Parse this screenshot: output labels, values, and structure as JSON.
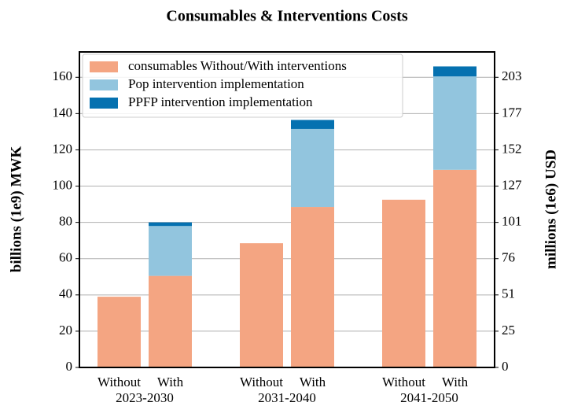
{
  "chart_data": {
    "type": "stacked-bar",
    "title": "Consumables & Interventions Costs",
    "categories": [
      "Without",
      "With",
      "Without",
      "With",
      "Without",
      "With"
    ],
    "groups": [
      "2023-2030",
      "2031-2040",
      "2041-2050"
    ],
    "series": [
      {
        "name": "consumables Without/With interventions",
        "color": "#f4a582",
        "values": [
          39,
          50.5,
          68.5,
          88.5,
          92.5,
          109
        ]
      },
      {
        "name": "Pop intervention implementation",
        "color": "#92c5de",
        "values": [
          null,
          27.5,
          null,
          43,
          null,
          51.5
        ]
      },
      {
        "name": "PPFP intervention implementation",
        "color": "#0571b0",
        "values": [
          null,
          2,
          null,
          5,
          null,
          5.5
        ]
      }
    ],
    "ylabel": "billions (1e9) MWK",
    "ylim": [
      0,
      174
    ],
    "yticks": [
      0,
      20,
      40,
      60,
      80,
      100,
      120,
      140,
      160
    ],
    "y2label": "millions (1e6) USD",
    "y2lim": [
      0,
      220.28
    ],
    "y2ticks": [
      0,
      {
        "value": 25.32,
        "label": "25"
      },
      {
        "value": 50.64,
        "label": "51"
      },
      {
        "value": 75.96,
        "label": "76"
      },
      {
        "value": 101.28,
        "label": "101"
      },
      {
        "value": 126.6,
        "label": "127"
      },
      {
        "value": 151.92,
        "label": "152"
      },
      {
        "value": 177.24,
        "label": "177"
      },
      {
        "value": 202.56,
        "label": "203"
      }
    ],
    "grid": true,
    "legend": "upper left"
  }
}
